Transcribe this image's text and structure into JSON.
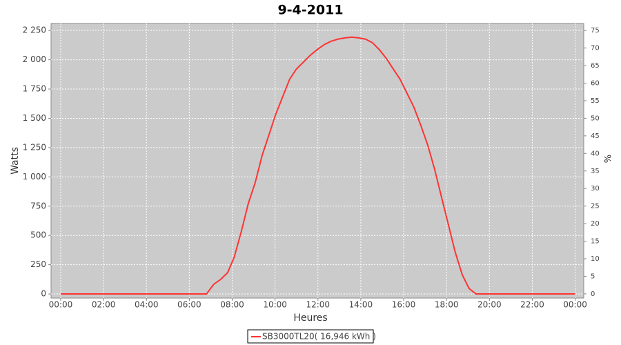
{
  "chart_data": {
    "type": "line",
    "title": "9-4-2011",
    "x_label": "Heures",
    "y_label": "Watts",
    "y2_label": "%",
    "xlim": [
      -0.45,
      24.4
    ],
    "xticks": [
      {
        "value": 0,
        "label": "00:00"
      },
      {
        "value": 2,
        "label": "02:00"
      },
      {
        "value": 4,
        "label": "04:00"
      },
      {
        "value": 6,
        "label": "06:00"
      },
      {
        "value": 8,
        "label": "08:00"
      },
      {
        "value": 10,
        "label": "10:00"
      },
      {
        "value": 12,
        "label": "12:00"
      },
      {
        "value": 14,
        "label": "14:00"
      },
      {
        "value": 16,
        "label": "16:00"
      },
      {
        "value": 18,
        "label": "18:00"
      },
      {
        "value": 20,
        "label": "20:00"
      },
      {
        "value": 22,
        "label": "22:00"
      },
      {
        "value": 24,
        "label": "00:00"
      }
    ],
    "ylim": [
      -35,
      2310
    ],
    "yticks": [
      0,
      250,
      500,
      750,
      {
        "value": 1000,
        "label": "1 000"
      },
      {
        "value": 1250,
        "label": "1 250"
      },
      {
        "value": 1500,
        "label": "1 500"
      },
      {
        "value": 1750,
        "label": "1 750"
      },
      {
        "value": 2000,
        "label": "2 000"
      },
      {
        "value": 2250,
        "label": "2 250"
      }
    ],
    "y2lim": [
      -1.2,
      77
    ],
    "y2ticks": [
      0,
      5,
      10,
      15,
      20,
      25,
      30,
      35,
      40,
      45,
      50,
      55,
      60,
      65,
      70,
      75
    ],
    "grid": true,
    "legend": "bottom",
    "x": [
      0,
      6.8,
      7.14,
      7.46,
      7.79,
      8.1,
      8.43,
      8.75,
      9.07,
      9.4,
      9.72,
      10.04,
      10.36,
      10.68,
      11.0,
      11.33,
      11.65,
      11.97,
      12.29,
      12.61,
      12.93,
      13.26,
      13.58,
      13.9,
      14.22,
      14.54,
      14.86,
      15.19,
      15.51,
      15.83,
      16.15,
      16.47,
      16.8,
      17.12,
      17.44,
      17.76,
      18.08,
      18.4,
      18.73,
      19.05,
      19.37,
      24
    ],
    "series": [
      {
        "name": "SB3000TL20( 16,946 kWh )",
        "color": "#ff3333",
        "values": [
          0,
          0,
          83,
          124,
          183,
          318,
          537,
          772,
          949,
          1185,
          1362,
          1539,
          1686,
          1834,
          1922,
          1981,
          2040,
          2087,
          2129,
          2158,
          2176,
          2187,
          2193,
          2187,
          2176,
          2146,
          2087,
          2011,
          1922,
          1834,
          1716,
          1598,
          1439,
          1273,
          1067,
          831,
          596,
          360,
          165,
          47,
          0,
          0
        ]
      }
    ]
  }
}
